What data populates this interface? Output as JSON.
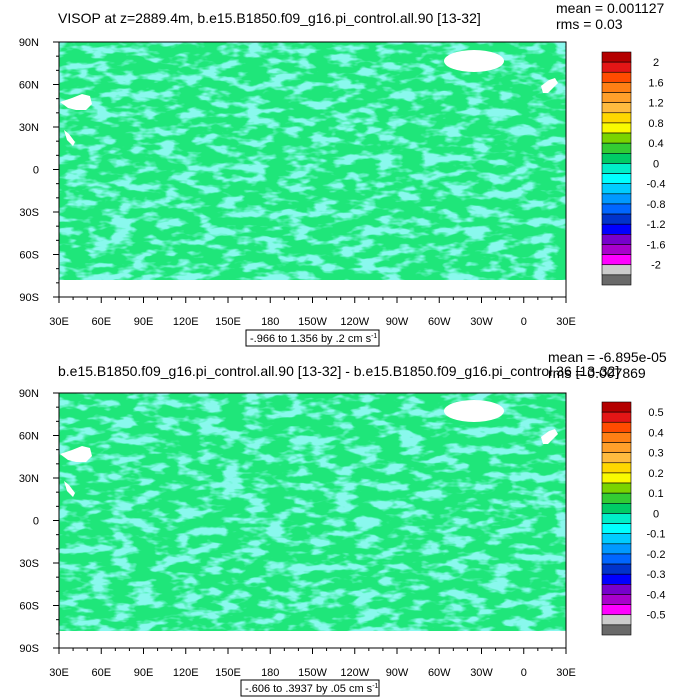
{
  "chart_data": [
    {
      "type": "heatmap",
      "title": "VISOP at z=2889.4m, b.e15.B1850.f09_g16.pi_control.all.90 [13-32]",
      "stats": {
        "mean": "mean = 0.001127",
        "rms": "rms = 0.03"
      },
      "x_ticks": [
        "30E",
        "60E",
        "90E",
        "120E",
        "150E",
        "180",
        "150W",
        "120W",
        "90W",
        "60W",
        "30W",
        "0",
        "30E"
      ],
      "y_ticks": [
        "90N",
        "60N",
        "30N",
        "0",
        "30S",
        "60S",
        "90S"
      ],
      "contour_info": "-.966 to 1.356 by .2 cm s",
      "contour_sup": "-1",
      "colorbar": {
        "labels": [
          "2",
          "1.6",
          "1.2",
          "0.8",
          "0.4",
          "0",
          "-0.4",
          "-0.8",
          "-1.2",
          "-1.6",
          "-2"
        ],
        "colors": [
          "#b40000",
          "#e31616",
          "#ff4b00",
          "#ff7f14",
          "#ff9f2a",
          "#ffbb3f",
          "#ffd700",
          "#f9f900",
          "#7ad400",
          "#33cc33",
          "#00cc66",
          "#00eec9",
          "#00ffff",
          "#00ccff",
          "#0099ff",
          "#0066ff",
          "#0033cc",
          "#0000ff",
          "#7700cc",
          "#aa00cc",
          "#ff00ff",
          "#cccccc",
          "#696969"
        ]
      }
    },
    {
      "type": "heatmap",
      "title": "b.e15.B1850.f09_g16.pi_control.all.90 [13-32] - b.e15.B1850.f09_g16.pi_control.36 [13-32]",
      "stats": {
        "mean": "mean = -6.895e-05",
        "rms": "rms = 0.007869"
      },
      "x_ticks": [
        "30E",
        "60E",
        "90E",
        "120E",
        "150E",
        "180",
        "150W",
        "120W",
        "90W",
        "60W",
        "30W",
        "0",
        "30E"
      ],
      "y_ticks": [
        "90N",
        "60N",
        "30N",
        "0",
        "30S",
        "60S",
        "90S"
      ],
      "contour_info": "-.606 to .3937 by .05 cm s",
      "contour_sup": "-1",
      "colorbar": {
        "labels": [
          "0.5",
          "0.4",
          "0.3",
          "0.2",
          "0.1",
          "0",
          "-0.1",
          "-0.2",
          "-0.3",
          "-0.4",
          "-0.5"
        ],
        "colors": [
          "#b40000",
          "#e31616",
          "#ff4b00",
          "#ff7f14",
          "#ff9f2a",
          "#ffbb3f",
          "#ffd700",
          "#f9f900",
          "#7ad400",
          "#33cc33",
          "#00cc66",
          "#00eec9",
          "#00ffff",
          "#00ccff",
          "#0099ff",
          "#0066ff",
          "#0033cc",
          "#0000ff",
          "#7700cc",
          "#aa00cc",
          "#ff00ff",
          "#cccccc",
          "#696969"
        ]
      }
    }
  ],
  "colors": {
    "ocean": "#1fe67a",
    "anomaly": "#40f0d8",
    "land": "#ffffff"
  }
}
